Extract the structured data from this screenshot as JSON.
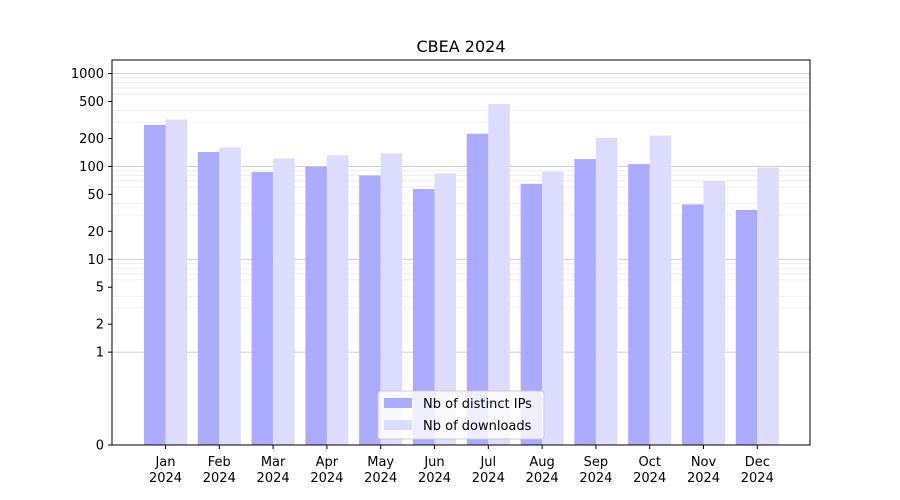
{
  "chart_data": {
    "type": "bar",
    "title": "CBEA 2024",
    "xlabel": "",
    "ylabel": "",
    "y_scale": "symlog",
    "ylim": [
      0,
      1400
    ],
    "yticks": [
      0,
      1,
      2,
      5,
      10,
      20,
      50,
      100,
      200,
      500,
      1000
    ],
    "grid": true,
    "legend_position": "bottom-center",
    "categories": [
      [
        "Jan",
        "2024"
      ],
      [
        "Feb",
        "2024"
      ],
      [
        "Mar",
        "2024"
      ],
      [
        "Apr",
        "2024"
      ],
      [
        "May",
        "2024"
      ],
      [
        "Jun",
        "2024"
      ],
      [
        "Jul",
        "2024"
      ],
      [
        "Aug",
        "2024"
      ],
      [
        "Sep",
        "2024"
      ],
      [
        "Oct",
        "2024"
      ],
      [
        "Nov",
        "2024"
      ],
      [
        "Dec",
        "2024"
      ]
    ],
    "series": [
      {
        "name": "Nb of distinct IPs",
        "color": "#aaaaff",
        "values": [
          280,
          143,
          87,
          99,
          80,
          57,
          225,
          65,
          120,
          106,
          39,
          34
        ]
      },
      {
        "name": "Nb of downloads",
        "color": "#dcdcff",
        "values": [
          320,
          160,
          122,
          132,
          138,
          84,
          470,
          88,
          203,
          215,
          70,
          97
        ]
      }
    ]
  }
}
